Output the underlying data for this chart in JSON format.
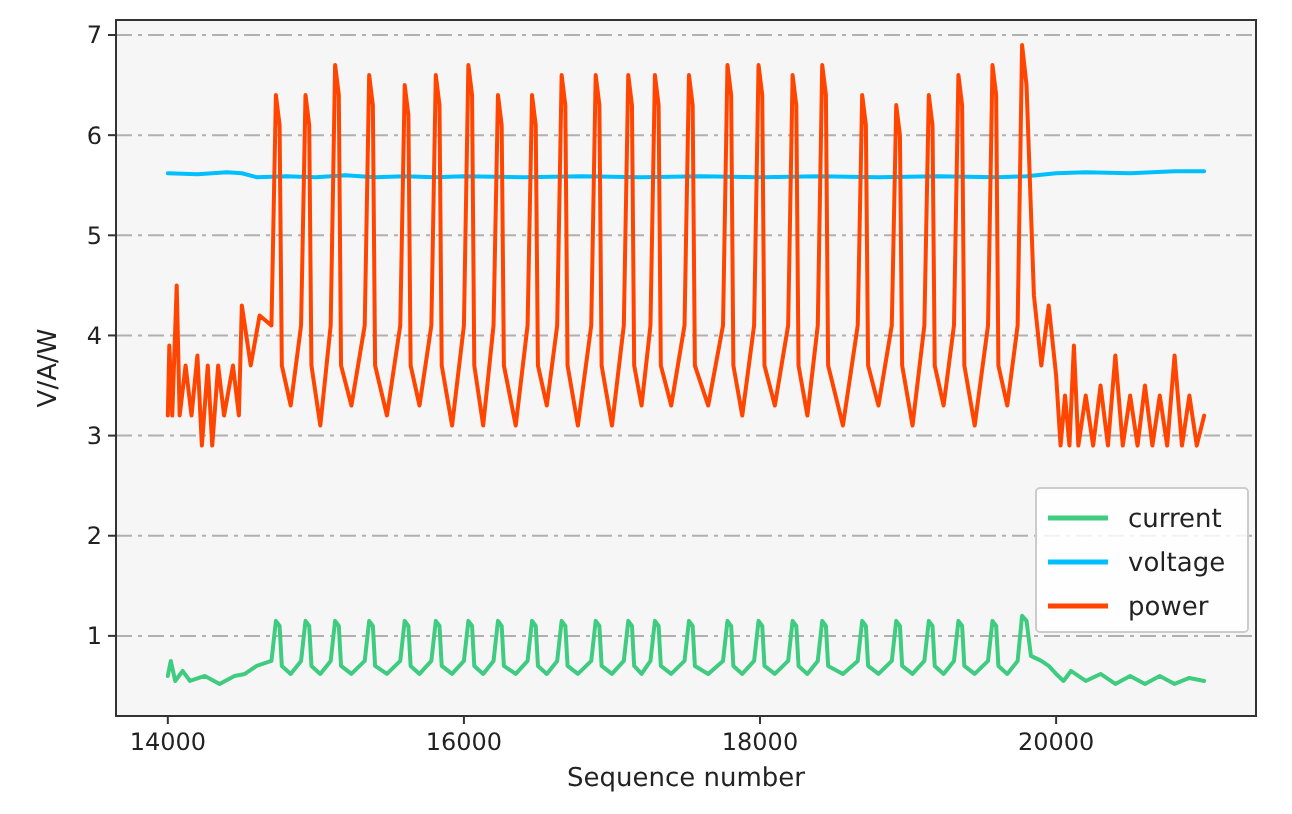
{
  "chart_data": {
    "type": "line",
    "xlabel": "Sequence number",
    "ylabel": "V/A/W",
    "xlim": [
      13650,
      21350
    ],
    "ylim": [
      0.2,
      7.15
    ],
    "xticks": [
      14000,
      16000,
      18000,
      20000
    ],
    "yticks": [
      1,
      2,
      3,
      4,
      5,
      6,
      7
    ],
    "grid": "y",
    "legend": "bottom right",
    "line_style": "solid",
    "marker": "none",
    "series": [
      {
        "name": "current",
        "color": "#40cc80",
        "x": [
          14000,
          14020,
          14050,
          14100,
          14150,
          14250,
          14350,
          14450,
          14520,
          14600,
          14700,
          14730,
          14755,
          14770,
          14830,
          14900,
          14930,
          14955,
          14970,
          15030,
          15100,
          15130,
          15155,
          15170,
          15240,
          15330,
          15360,
          15385,
          15400,
          15480,
          15570,
          15600,
          15625,
          15640,
          15700,
          15780,
          15810,
          15835,
          15850,
          15920,
          16000,
          16030,
          16055,
          16070,
          16130,
          16200,
          16230,
          16255,
          16270,
          16350,
          16430,
          16460,
          16485,
          16500,
          16560,
          16630,
          16660,
          16685,
          16700,
          16770,
          16860,
          16890,
          16915,
          16930,
          17000,
          17080,
          17110,
          17135,
          17150,
          17200,
          17260,
          17290,
          17315,
          17330,
          17400,
          17490,
          17520,
          17545,
          17560,
          17650,
          17750,
          17780,
          17805,
          17820,
          17880,
          17960,
          17990,
          18015,
          18030,
          18100,
          18190,
          18220,
          18245,
          18260,
          18320,
          18390,
          18420,
          18445,
          18460,
          18560,
          18660,
          18690,
          18715,
          18730,
          18800,
          18890,
          18920,
          18945,
          18960,
          19030,
          19110,
          19140,
          19165,
          19180,
          19240,
          19310,
          19340,
          19365,
          19380,
          19450,
          19540,
          19570,
          19595,
          19610,
          19670,
          19740,
          19770,
          19800,
          19830,
          19900,
          19950,
          20000,
          20050,
          20100,
          20200,
          20300,
          20400,
          20500,
          20600,
          20700,
          20800,
          20900,
          21000
        ],
        "values": [
          0.6,
          0.75,
          0.55,
          0.65,
          0.55,
          0.6,
          0.52,
          0.6,
          0.62,
          0.7,
          0.75,
          1.15,
          1.1,
          0.7,
          0.62,
          0.75,
          1.15,
          1.1,
          0.7,
          0.62,
          0.75,
          1.15,
          1.1,
          0.7,
          0.62,
          0.75,
          1.15,
          1.1,
          0.7,
          0.62,
          0.75,
          1.15,
          1.1,
          0.7,
          0.62,
          0.75,
          1.15,
          1.1,
          0.7,
          0.62,
          0.75,
          1.15,
          1.1,
          0.7,
          0.62,
          0.75,
          1.15,
          1.1,
          0.7,
          0.62,
          0.75,
          1.15,
          1.1,
          0.7,
          0.62,
          0.75,
          1.15,
          1.1,
          0.7,
          0.62,
          0.75,
          1.15,
          1.1,
          0.7,
          0.62,
          0.75,
          1.15,
          1.1,
          0.7,
          0.62,
          0.75,
          1.15,
          1.1,
          0.7,
          0.62,
          0.75,
          1.15,
          1.1,
          0.7,
          0.62,
          0.75,
          1.15,
          1.1,
          0.7,
          0.62,
          0.75,
          1.15,
          1.1,
          0.7,
          0.62,
          0.75,
          1.15,
          1.1,
          0.7,
          0.62,
          0.75,
          1.15,
          1.1,
          0.7,
          0.62,
          0.75,
          1.15,
          1.1,
          0.7,
          0.62,
          0.75,
          1.15,
          1.1,
          0.7,
          0.62,
          0.75,
          1.15,
          1.1,
          0.7,
          0.62,
          0.75,
          1.15,
          1.1,
          0.7,
          0.62,
          0.75,
          1.15,
          1.1,
          0.7,
          0.62,
          0.75,
          1.2,
          1.15,
          0.8,
          0.75,
          0.7,
          0.62,
          0.55,
          0.65,
          0.55,
          0.62,
          0.52,
          0.6,
          0.52,
          0.6,
          0.52,
          0.58,
          0.55
        ]
      },
      {
        "name": "voltage",
        "color": "#00bfff",
        "x": [
          14000,
          14200,
          14400,
          14500,
          14600,
          14800,
          15000,
          15200,
          15400,
          15600,
          15800,
          16000,
          16400,
          16800,
          17200,
          17600,
          18000,
          18400,
          18800,
          19200,
          19600,
          19800,
          20000,
          20200,
          20500,
          20800,
          21000
        ],
        "values": [
          5.62,
          5.61,
          5.63,
          5.62,
          5.58,
          5.59,
          5.58,
          5.6,
          5.58,
          5.59,
          5.58,
          5.59,
          5.58,
          5.59,
          5.58,
          5.59,
          5.58,
          5.59,
          5.58,
          5.59,
          5.58,
          5.59,
          5.62,
          5.63,
          5.62,
          5.64,
          5.64
        ]
      },
      {
        "name": "power",
        "color": "#ff4500",
        "x": [
          14000,
          14010,
          14030,
          14060,
          14080,
          14120,
          14160,
          14200,
          14230,
          14270,
          14300,
          14340,
          14380,
          14440,
          14480,
          14500,
          14560,
          14620,
          14700,
          14730,
          14755,
          14770,
          14830,
          14900,
          14930,
          14955,
          14970,
          15030,
          15100,
          15130,
          15155,
          15170,
          15240,
          15330,
          15360,
          15385,
          15400,
          15480,
          15570,
          15600,
          15625,
          15640,
          15700,
          15780,
          15810,
          15835,
          15850,
          15920,
          16000,
          16030,
          16055,
          16070,
          16130,
          16200,
          16230,
          16255,
          16270,
          16350,
          16430,
          16460,
          16485,
          16500,
          16560,
          16630,
          16660,
          16685,
          16700,
          16770,
          16860,
          16890,
          16915,
          16930,
          17000,
          17080,
          17110,
          17135,
          17150,
          17200,
          17260,
          17290,
          17315,
          17330,
          17400,
          17490,
          17520,
          17545,
          17560,
          17650,
          17750,
          17780,
          17805,
          17820,
          17880,
          17960,
          17990,
          18015,
          18030,
          18100,
          18190,
          18220,
          18245,
          18260,
          18320,
          18390,
          18420,
          18445,
          18460,
          18560,
          18660,
          18690,
          18715,
          18730,
          18800,
          18890,
          18920,
          18945,
          18960,
          19030,
          19110,
          19140,
          19165,
          19180,
          19240,
          19310,
          19340,
          19365,
          19380,
          19450,
          19540,
          19570,
          19595,
          19610,
          19670,
          19740,
          19770,
          19800,
          19850,
          19900,
          19950,
          20000,
          20030,
          20060,
          20090,
          20120,
          20150,
          20200,
          20250,
          20300,
          20350,
          20400,
          20450,
          20500,
          20550,
          20600,
          20650,
          20700,
          20750,
          20800,
          20850,
          20900,
          20950,
          21000
        ],
        "values": [
          3.2,
          3.9,
          3.2,
          4.5,
          3.2,
          3.7,
          3.2,
          3.8,
          2.9,
          3.7,
          2.9,
          3.7,
          3.2,
          3.7,
          3.2,
          4.3,
          3.7,
          4.2,
          4.1,
          6.4,
          6.1,
          3.7,
          3.3,
          4.1,
          6.4,
          6.1,
          3.7,
          3.1,
          4.1,
          6.7,
          6.4,
          3.7,
          3.3,
          4.1,
          6.6,
          6.3,
          3.7,
          3.2,
          4.1,
          6.5,
          6.2,
          3.7,
          3.3,
          4.1,
          6.6,
          6.3,
          3.7,
          3.1,
          4.1,
          6.7,
          6.4,
          3.7,
          3.1,
          4.1,
          6.4,
          6.1,
          3.7,
          3.1,
          4.1,
          6.4,
          6.1,
          3.7,
          3.3,
          4.1,
          6.6,
          6.3,
          3.7,
          3.1,
          4.1,
          6.6,
          6.3,
          3.7,
          3.1,
          4.1,
          6.6,
          6.3,
          3.7,
          3.3,
          4.1,
          6.6,
          6.3,
          3.7,
          3.3,
          4.1,
          6.6,
          6.3,
          3.7,
          3.3,
          4.1,
          6.7,
          6.4,
          3.7,
          3.2,
          4.1,
          6.7,
          6.4,
          3.7,
          3.3,
          4.1,
          6.6,
          6.3,
          3.7,
          3.2,
          4.1,
          6.7,
          6.4,
          3.7,
          3.1,
          4.1,
          6.4,
          6.1,
          3.7,
          3.3,
          4.1,
          6.3,
          6.0,
          3.7,
          3.1,
          4.1,
          6.4,
          6.1,
          3.7,
          3.3,
          4.1,
          6.6,
          6.3,
          3.7,
          3.1,
          4.1,
          6.7,
          6.4,
          3.7,
          3.3,
          4.1,
          6.9,
          6.5,
          4.4,
          3.7,
          4.3,
          3.6,
          2.9,
          3.4,
          2.9,
          3.9,
          2.9,
          3.4,
          2.9,
          3.5,
          2.9,
          3.8,
          2.9,
          3.4,
          2.9,
          3.5,
          2.9,
          3.4,
          2.9,
          3.8,
          2.9,
          3.4,
          2.9,
          3.2
        ]
      }
    ]
  }
}
